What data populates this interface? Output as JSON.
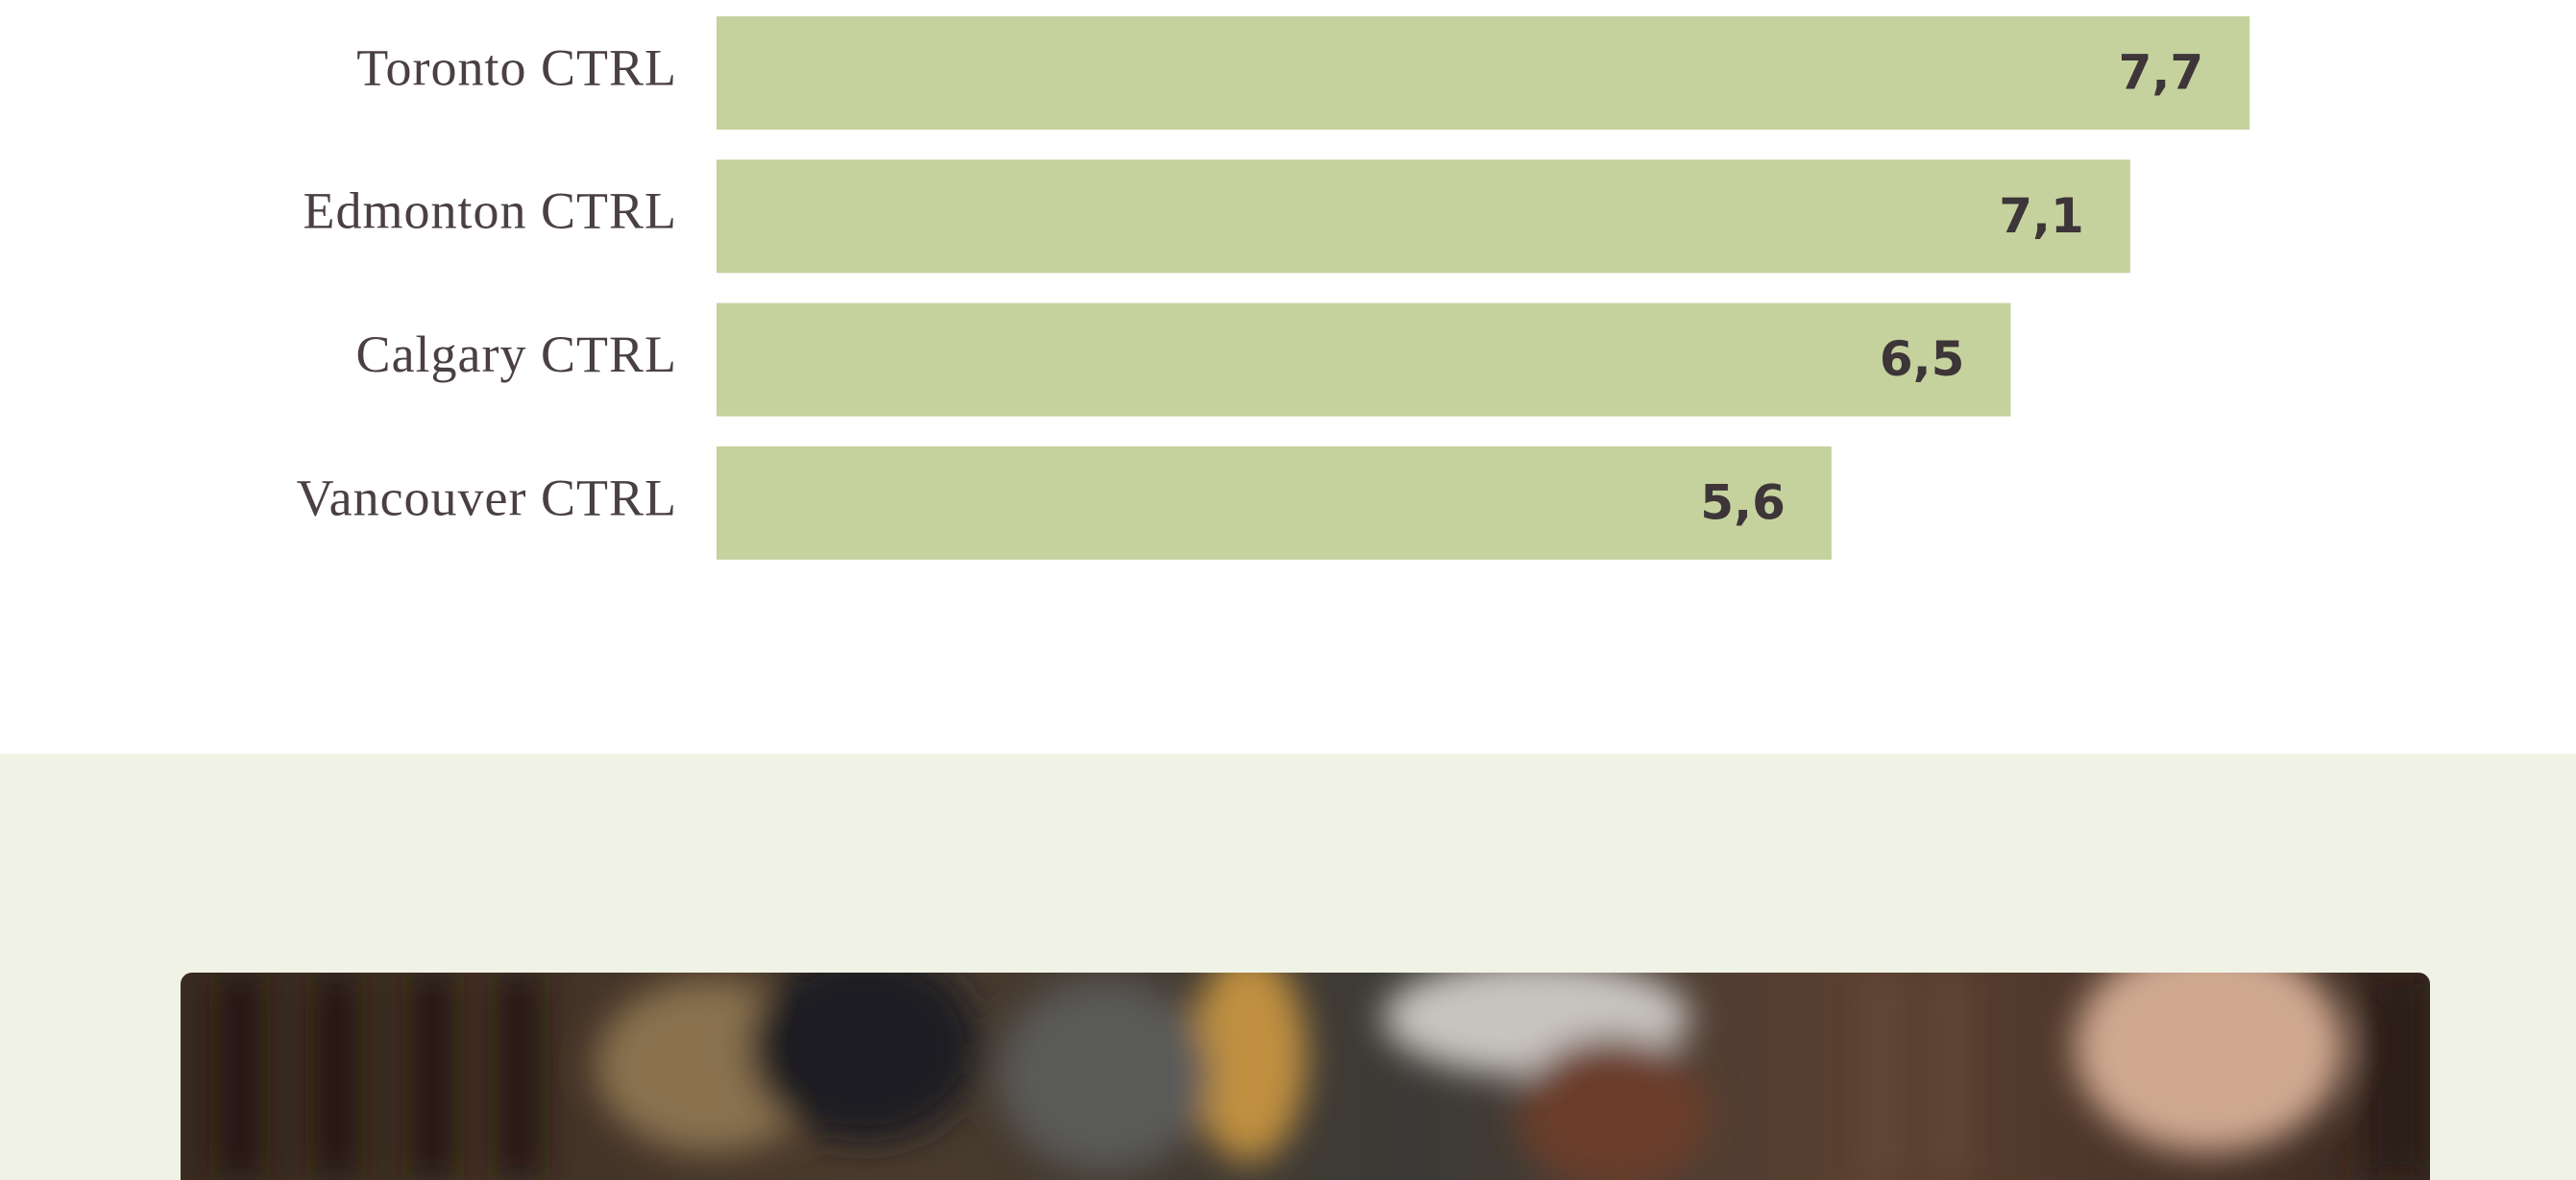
{
  "chart_data": {
    "type": "bar",
    "orientation": "horizontal",
    "categories": [
      "Toronto CTRL",
      "Edmonton CTRL",
      "Calgary CTRL",
      "Vancouver CTRL"
    ],
    "values": [
      7.7,
      7.1,
      6.5,
      5.6
    ],
    "value_labels": [
      "7,7",
      "7,1",
      "6,5",
      "5,6"
    ],
    "color": "#c5d29d"
  }
}
